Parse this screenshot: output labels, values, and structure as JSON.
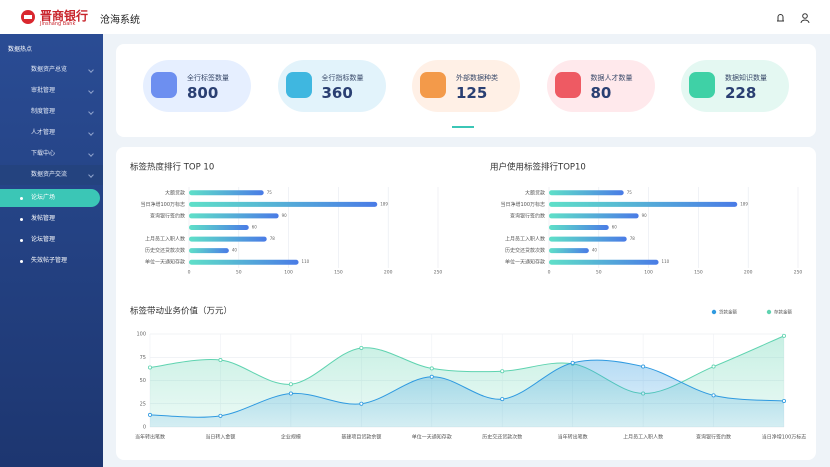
{
  "header": {
    "brand": "晋商银行",
    "brand_en": "Jinshang Bank",
    "system": "沧海系统"
  },
  "sidebar": {
    "section": "数据热点",
    "items": [
      "数据资产总览",
      "审批管理",
      "制度管理",
      "人才管理",
      "下载中心",
      "数据资产交流"
    ],
    "subitems": [
      "论坛广场",
      "发帖管理",
      "论坛管理",
      "失效帖子管理"
    ]
  },
  "stats": [
    {
      "label": "全行标签数量",
      "value": 800
    },
    {
      "label": "全行指标数量",
      "value": 360
    },
    {
      "label": "外部数据种类",
      "value": 125
    },
    {
      "label": "数据人才数量",
      "value": 80
    },
    {
      "label": "数据知识数量",
      "value": 228
    }
  ],
  "chart_data": [
    {
      "type": "bar",
      "orientation": "horizontal",
      "title": "标签热度排行 TOP 10",
      "categories": [
        "大额贷款",
        "当日净增100万标志",
        "查询银行签约数",
        null,
        "上月员工入职人数",
        "历史交还贷款次数",
        "单位一天通知存款"
      ],
      "values": [
        75,
        189,
        90,
        60,
        78,
        40,
        110
      ],
      "xlim": [
        0,
        250
      ],
      "xticks": [
        0,
        50,
        100,
        150,
        200,
        250
      ],
      "grid": true,
      "color": [
        "#5fe0c8",
        "#4a7be6"
      ]
    },
    {
      "type": "bar",
      "orientation": "horizontal",
      "title": "用户使用标签排行TOP10",
      "categories": [
        "大额贷款",
        "当日净增100万标志",
        "查询银行签约数",
        null,
        "上月员工入职人数",
        "历史交还贷款次数",
        "单位一天通知存款"
      ],
      "values": [
        75,
        189,
        90,
        60,
        78,
        40,
        110
      ],
      "xlim": [
        0,
        250
      ],
      "xticks": [
        0,
        50,
        100,
        150,
        200,
        250
      ],
      "grid": true,
      "color": [
        "#5fe0c8",
        "#4a7be6"
      ]
    },
    {
      "type": "line",
      "smooth": true,
      "area": true,
      "title": "标签带动业务价值（万元）",
      "categories": [
        "当年转出笔数",
        "当日转入金额",
        "企业规模",
        "基建项目贷款余额",
        "单位一天通知存款",
        "历史交还贷款次数",
        "当年转出笔数",
        "上月员工入职人数",
        "查询银行签约数",
        "当日净增100万标志"
      ],
      "series": [
        {
          "name": "贷款金额",
          "color": "#2f9ae0",
          "values": [
            13,
            12,
            36,
            25,
            54,
            30,
            69,
            65,
            34,
            28
          ]
        },
        {
          "name": "存款金额",
          "color": "#5fd3b0",
          "values": [
            64,
            72,
            46,
            85,
            63,
            60,
            68,
            36,
            65,
            98
          ]
        }
      ],
      "ylim": [
        0,
        100
      ],
      "yticks": [
        0,
        25,
        50,
        75,
        100
      ],
      "grid": true,
      "legend": "top-right"
    }
  ]
}
